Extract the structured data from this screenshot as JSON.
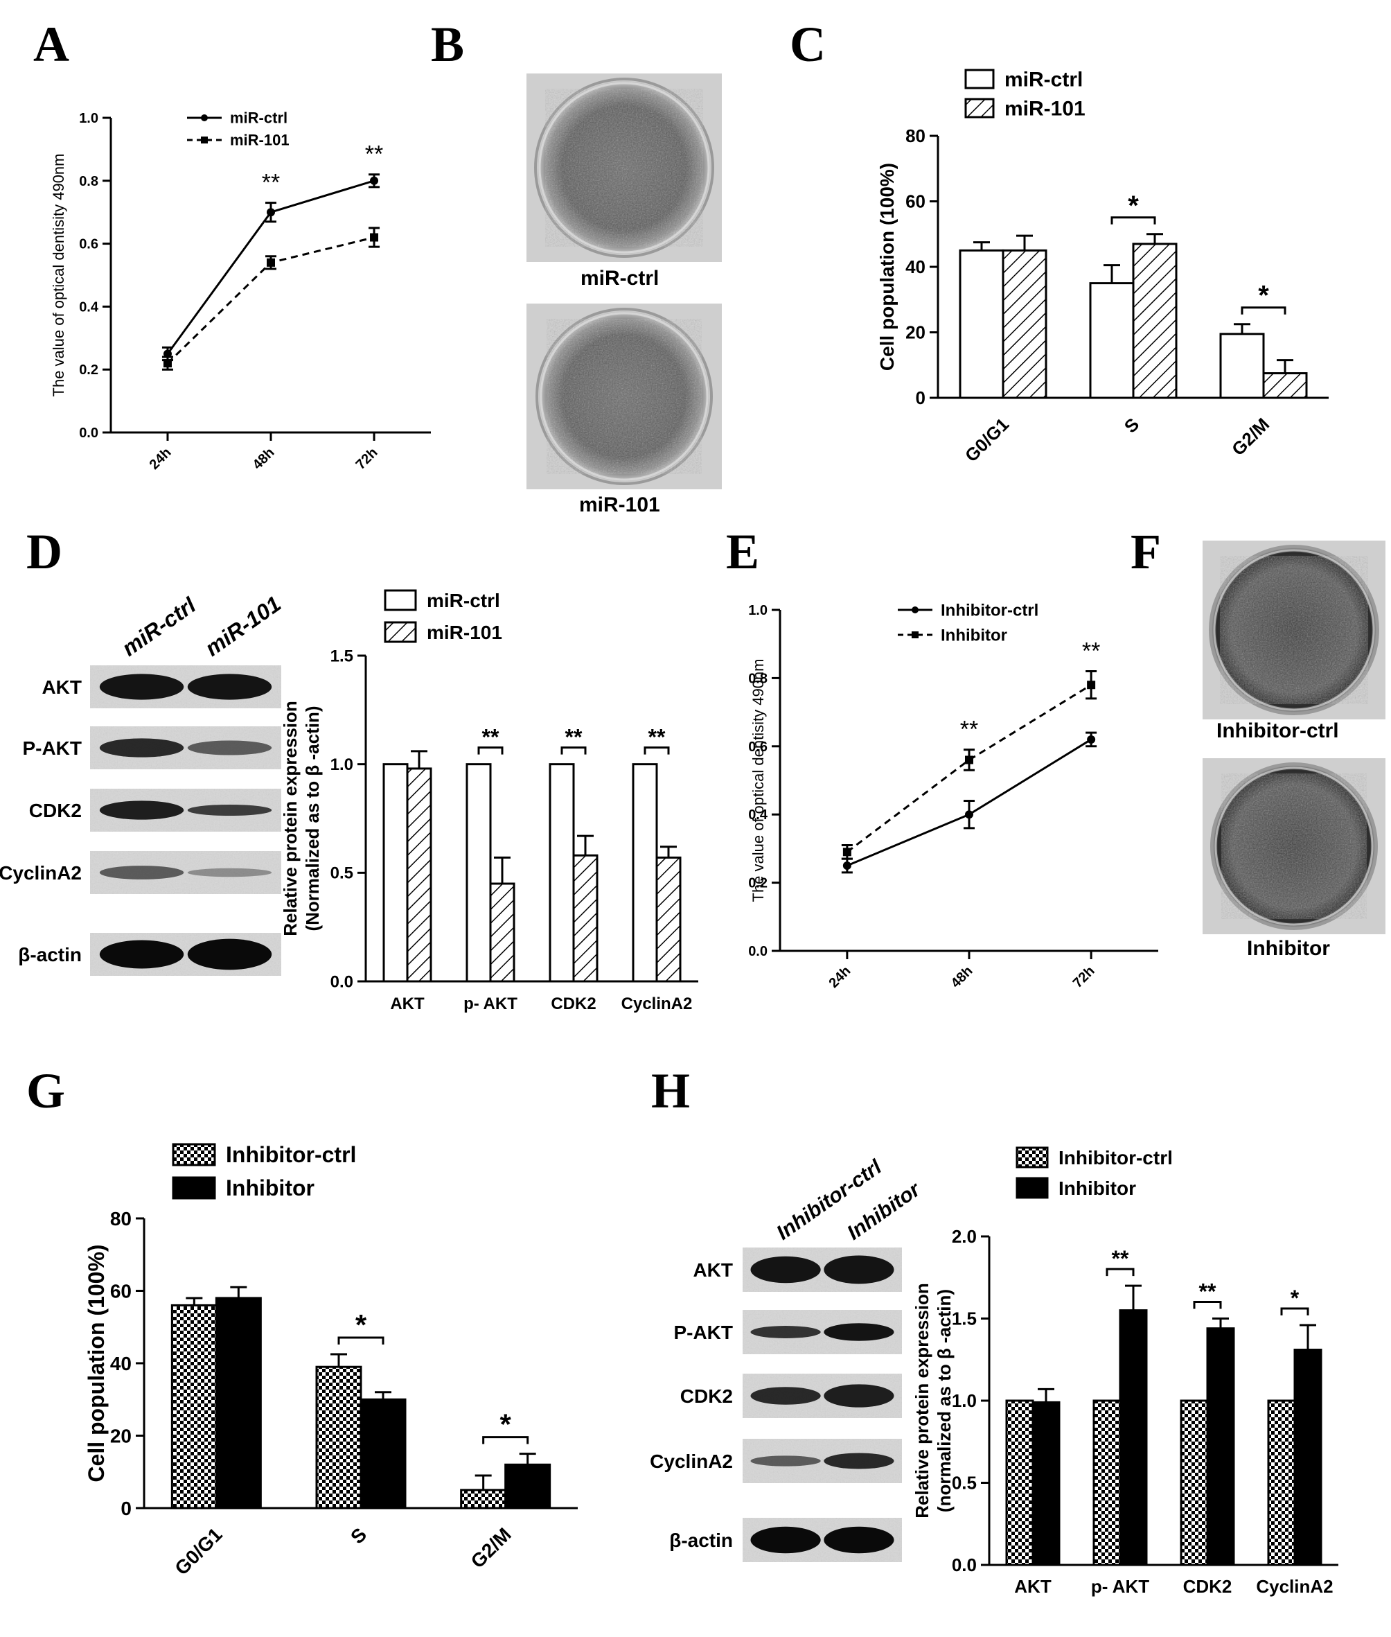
{
  "panels": {
    "A": "A",
    "B": "B",
    "C": "C",
    "D": "D",
    "E": "E",
    "F": "F",
    "G": "G",
    "H": "H"
  },
  "dish_labels": {
    "B_top": "miR-ctrl",
    "B_bottom": "miR-101",
    "F_top": "Inhibitor-ctrl",
    "F_bottom": "Inhibitor"
  },
  "blots": {
    "D": {
      "lanes": [
        "miR-ctrl",
        "miR-101"
      ],
      "rows": [
        "AKT",
        "P-AKT",
        "CDK2",
        "CyclinA2",
        "β-actin"
      ]
    },
    "H": {
      "lanes": [
        "Inhibitor-ctrl",
        "Inhibitor"
      ],
      "rows": [
        "AKT",
        "P-AKT",
        "CDK2",
        "CyclinA2",
        "β-actin"
      ]
    }
  },
  "chart_data": [
    {
      "id": "A",
      "type": "line",
      "x": [
        "24h",
        "48h",
        "72h"
      ],
      "series": [
        {
          "name": "miR-ctrl",
          "values": [
            0.25,
            0.7,
            0.8
          ],
          "errors": [
            0.02,
            0.03,
            0.02
          ],
          "style": "solid",
          "marker": "circle"
        },
        {
          "name": "miR-101",
          "values": [
            0.22,
            0.54,
            0.62
          ],
          "errors": [
            0.02,
            0.02,
            0.03
          ],
          "style": "dashed",
          "marker": "square"
        }
      ],
      "annotations": [
        {
          "x": "48h",
          "text": "**"
        },
        {
          "x": "72h",
          "text": "**"
        }
      ],
      "ylabel": "The value of optical dentisity 490nm",
      "ylim": [
        0,
        1.0
      ],
      "yticks": [
        "0.0",
        "0.2",
        "0.4",
        "0.6",
        "0.8",
        "1.0"
      ],
      "legend": "top-left"
    },
    {
      "id": "C",
      "type": "bar",
      "categories": [
        "G0/G1",
        "S",
        "G2/M"
      ],
      "series": [
        {
          "name": "miR-ctrl",
          "values": [
            45,
            35,
            19.5
          ],
          "errors": [
            2.5,
            5.5,
            3
          ],
          "fill": "white"
        },
        {
          "name": "miR-101",
          "values": [
            45,
            47,
            7.5
          ],
          "errors": [
            4.5,
            3,
            4
          ],
          "fill": "hatch"
        }
      ],
      "annotations": [
        {
          "category": "S",
          "text": "*"
        },
        {
          "category": "G2/M",
          "text": "*"
        }
      ],
      "ylabel": "Cell population (100%)",
      "ylim": [
        0,
        80
      ],
      "yticks": [
        "0",
        "20",
        "40",
        "60",
        "80"
      ],
      "legend": "top-left"
    },
    {
      "id": "D",
      "type": "bar",
      "categories": [
        "AKT",
        "p- AKT",
        "CDK2",
        "CyclinA2"
      ],
      "series": [
        {
          "name": "miR-ctrl",
          "values": [
            1.0,
            1.0,
            1.0,
            1.0
          ],
          "errors": [
            0,
            0,
            0,
            0
          ],
          "fill": "white"
        },
        {
          "name": "miR-101",
          "values": [
            0.98,
            0.45,
            0.58,
            0.57
          ],
          "errors": [
            0.08,
            0.12,
            0.09,
            0.05
          ],
          "fill": "hatch"
        }
      ],
      "annotations": [
        {
          "category": "p- AKT",
          "text": "**"
        },
        {
          "category": "CDK2",
          "text": "**"
        },
        {
          "category": "CyclinA2",
          "text": "**"
        }
      ],
      "ylabel_lines": [
        "Relative protein expression",
        "(Normalized as to β -actin)"
      ],
      "ylim": [
        0,
        1.5
      ],
      "yticks": [
        "0.0",
        "0.5",
        "1.0",
        "1.5"
      ],
      "legend": "top"
    },
    {
      "id": "E",
      "type": "line",
      "x": [
        "24h",
        "48h",
        "72h"
      ],
      "series": [
        {
          "name": "Inhibitor-ctrl",
          "values": [
            0.25,
            0.4,
            0.62
          ],
          "errors": [
            0.02,
            0.04,
            0.02
          ],
          "style": "solid",
          "marker": "circle"
        },
        {
          "name": "Inhibitor",
          "values": [
            0.29,
            0.56,
            0.78
          ],
          "errors": [
            0.02,
            0.03,
            0.04
          ],
          "style": "dashed",
          "marker": "square"
        }
      ],
      "annotations": [
        {
          "x": "48h",
          "text": "**"
        },
        {
          "x": "72h",
          "text": "**"
        }
      ],
      "ylabel": "The value of optical dentisity 490nm",
      "ylim": [
        0,
        1.0
      ],
      "yticks": [
        "0.0",
        "0.2",
        "0.4",
        "0.6",
        "0.8",
        "1.0"
      ],
      "legend": "top-left"
    },
    {
      "id": "G",
      "type": "bar",
      "categories": [
        "G0/G1",
        "S",
        "G2/M"
      ],
      "series": [
        {
          "name": "Inhibitor-ctrl",
          "values": [
            56,
            39,
            5
          ],
          "errors": [
            2,
            3.5,
            4
          ],
          "fill": "checker"
        },
        {
          "name": "Inhibitor",
          "values": [
            58,
            30,
            12
          ],
          "errors": [
            3,
            2,
            3
          ],
          "fill": "black"
        }
      ],
      "annotations": [
        {
          "category": "S",
          "text": "*"
        },
        {
          "category": "G2/M",
          "text": "*"
        }
      ],
      "ylabel": "Cell population (100%)",
      "ylim": [
        0,
        80
      ],
      "yticks": [
        "0",
        "20",
        "40",
        "60",
        "80"
      ],
      "legend": "top-left"
    },
    {
      "id": "H",
      "type": "bar",
      "categories": [
        "AKT",
        "p- AKT",
        "CDK2",
        "CyclinA2"
      ],
      "series": [
        {
          "name": "Inhibitor-ctrl",
          "values": [
            1.0,
            1.0,
            1.0,
            1.0
          ],
          "errors": [
            0,
            0,
            0,
            0
          ],
          "fill": "checker"
        },
        {
          "name": "Inhibitor",
          "values": [
            0.99,
            1.55,
            1.44,
            1.31
          ],
          "errors": [
            0.08,
            0.15,
            0.06,
            0.15
          ],
          "fill": "black"
        }
      ],
      "annotations": [
        {
          "category": "p- AKT",
          "text": "**"
        },
        {
          "category": "CDK2",
          "text": "**"
        },
        {
          "category": "CyclinA2",
          "text": "*"
        }
      ],
      "ylabel_lines": [
        "Relative protein expression",
        "(normalized as to β -actin)"
      ],
      "ylim": [
        0,
        2.0
      ],
      "yticks": [
        "0.0",
        "0.5",
        "1.0",
        "1.5",
        "2.0"
      ],
      "legend": "top"
    }
  ]
}
